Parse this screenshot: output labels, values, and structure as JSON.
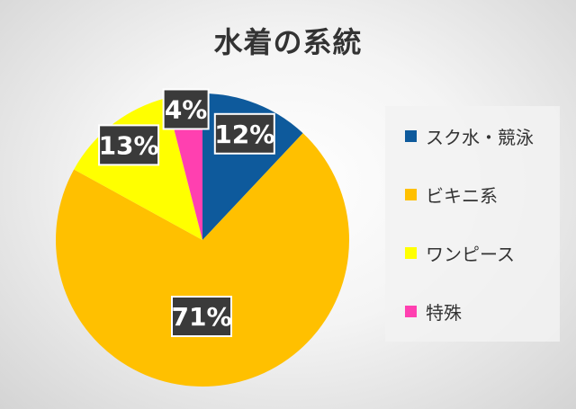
{
  "chart_data": {
    "type": "pie",
    "title": "水着の系統",
    "legend_position": "right",
    "slices": [
      {
        "name": "スク水・競泳",
        "value": 12,
        "label": "12%",
        "color": "#0E5A9C"
      },
      {
        "name": "ビキニ系",
        "value": 71,
        "label": "71%",
        "color": "#FFC000"
      },
      {
        "name": "ワンピース",
        "value": 13,
        "label": "13%",
        "color": "#FFFF00"
      },
      {
        "name": "特殊",
        "value": 4,
        "label": "4%",
        "color": "#FF40B0"
      }
    ]
  }
}
